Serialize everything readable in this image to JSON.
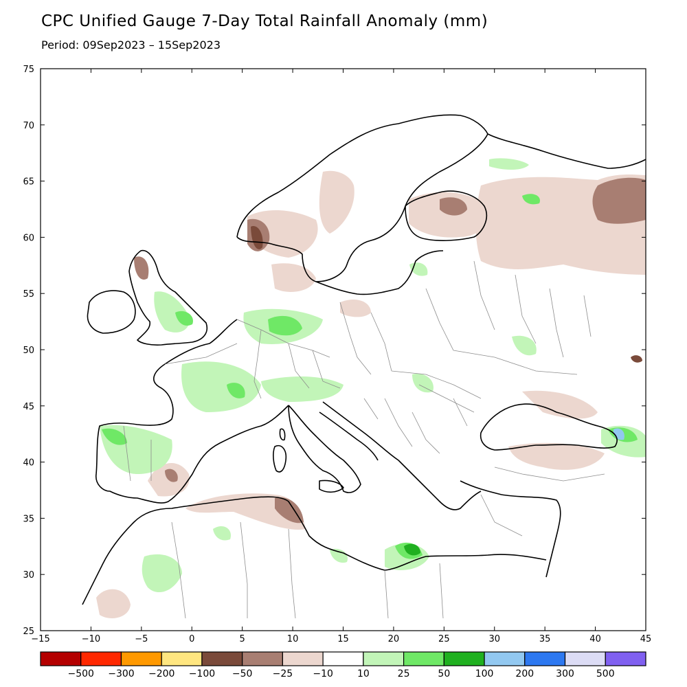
{
  "title": "CPC Unified Gauge 7-Day Total Rainfall Anomaly (mm)",
  "period": "Period: 09Sep2023 – 15Sep2023",
  "axes": {
    "lat_ticks": [
      "75",
      "70",
      "65",
      "60",
      "55",
      "50",
      "45",
      "40",
      "35",
      "30",
      "25"
    ],
    "lon_ticks": [
      "−15",
      "−10",
      "−5",
      "0",
      "5",
      "10",
      "15",
      "20",
      "25",
      "30",
      "35",
      "40",
      "45"
    ]
  },
  "colorbar": {
    "colors": [
      "#b40000",
      "#ff2800",
      "#ff9900",
      "#ffe680",
      "#7a4a3a",
      "#a87e72",
      "#ecd7cf",
      "#ffffff",
      "#c2f5b8",
      "#6fe866",
      "#20b020",
      "#92c8f0",
      "#2d78f0",
      "#dcdcf5",
      "#8060f0"
    ],
    "labels": [
      "−500",
      "−300",
      "−200",
      "−100",
      "−50",
      "−25",
      "−10",
      "10",
      "25",
      "50",
      "100",
      "200",
      "300",
      "500"
    ]
  },
  "palette": {
    "dry_strong": "#7a4a3a",
    "dry_mod": "#a87e72",
    "dry_light": "#ecd7cf",
    "wet_light": "#c2f5b8",
    "wet_mod": "#6fe866",
    "wet_strong": "#20b020",
    "wet_blue": "#92c8f0",
    "land": "#ffffff",
    "coast": "#000000",
    "border": "#8c8c8c"
  }
}
